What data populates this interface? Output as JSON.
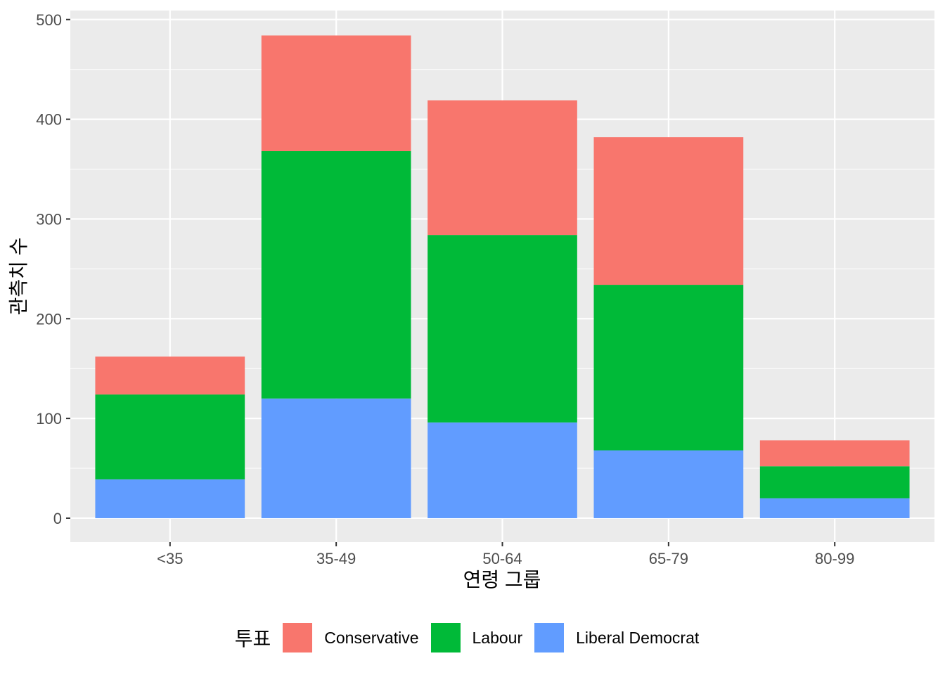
{
  "chart_data": {
    "type": "bar",
    "stacked": true,
    "title": "",
    "xlabel": "연령 그룹",
    "ylabel": "관측치 수",
    "categories": [
      "<35",
      "35-49",
      "50-64",
      "65-79",
      "80-99"
    ],
    "series": [
      {
        "name": "Conservative",
        "color": "#F8766D",
        "values": [
          38,
          116,
          135,
          148,
          26
        ]
      },
      {
        "name": "Labour",
        "color": "#00BA38",
        "values": [
          85,
          248,
          188,
          166,
          32
        ]
      },
      {
        "name": "Liberal Democrat",
        "color": "#619CFF",
        "values": [
          39,
          120,
          96,
          68,
          20
        ]
      }
    ],
    "ylim": [
      -24,
      509
    ],
    "yticks": [
      0,
      100,
      200,
      300,
      400,
      500
    ],
    "grid": true,
    "legend": {
      "title": "투표",
      "placement": "bottom"
    }
  }
}
